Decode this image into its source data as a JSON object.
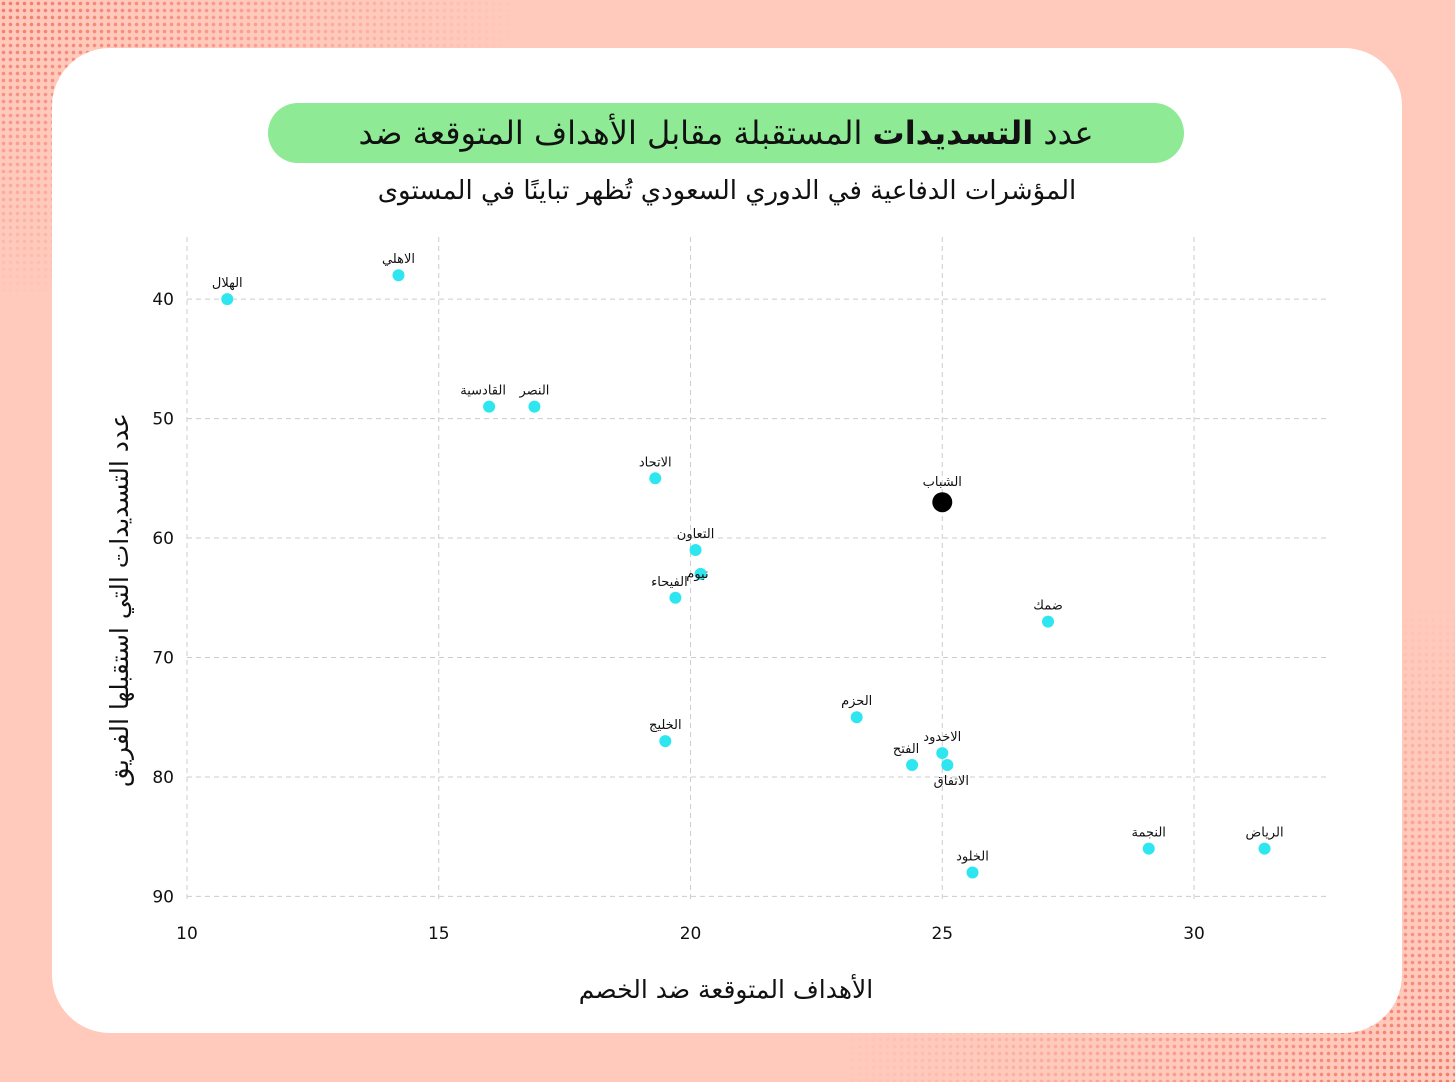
{
  "title": {
    "part1": "عدد",
    "bold": "التسديدات",
    "part2": "المستقبلة مقابل الأهداف المتوقعة ضد"
  },
  "subtitle": "المؤشرات الدفاعية في الدوري السعودي تُظهر تباينًا في المستوى",
  "colors": {
    "background": "#ffc9bb",
    "card": "#ffffff",
    "title_pill": "#8eea95",
    "point": "#2ee6f0",
    "highlight": "#000000",
    "grid": "#cccccc"
  },
  "chart_data": {
    "type": "scatter",
    "xlabel": "الأهداف المتوقعة ضد الخصم",
    "ylabel": "عدد التسديدات التي استقبلها الفريق",
    "xlim": [
      10,
      32.7
    ],
    "ylim": [
      34.8,
      90.3
    ],
    "y_inverted": true,
    "x_ticks": [
      10,
      15,
      20,
      25,
      30
    ],
    "y_ticks": [
      40,
      50,
      60,
      70,
      80,
      90
    ],
    "grid": true,
    "highlight": "الشباب",
    "points": [
      {
        "name": "الهلال",
        "x": 10.8,
        "y": 40,
        "label_pos": "above"
      },
      {
        "name": "الاهلي",
        "x": 14.2,
        "y": 38,
        "label_pos": "above"
      },
      {
        "name": "القادسية",
        "x": 16.0,
        "y": 49,
        "label_pos": "above-left"
      },
      {
        "name": "النصر",
        "x": 16.9,
        "y": 49,
        "label_pos": "above"
      },
      {
        "name": "الاتحاد",
        "x": 19.3,
        "y": 55,
        "label_pos": "above"
      },
      {
        "name": "الشباب",
        "x": 25.0,
        "y": 57,
        "label_pos": "above"
      },
      {
        "name": "التعاون",
        "x": 20.1,
        "y": 61,
        "label_pos": "above"
      },
      {
        "name": "نيوم",
        "x": 20.2,
        "y": 63,
        "label_pos": "right"
      },
      {
        "name": "الفيحاء",
        "x": 19.7,
        "y": 65,
        "label_pos": "above-left"
      },
      {
        "name": "ضمك",
        "x": 27.1,
        "y": 67,
        "label_pos": "above"
      },
      {
        "name": "الحزم",
        "x": 23.3,
        "y": 75,
        "label_pos": "above"
      },
      {
        "name": "الخليج",
        "x": 19.5,
        "y": 77,
        "label_pos": "above"
      },
      {
        "name": "الاخدود",
        "x": 25.0,
        "y": 78,
        "label_pos": "above"
      },
      {
        "name": "الفتح",
        "x": 24.4,
        "y": 79,
        "label_pos": "above-left"
      },
      {
        "name": "الاتفاق",
        "x": 25.1,
        "y": 79,
        "label_pos": "below"
      },
      {
        "name": "النجمة",
        "x": 29.1,
        "y": 86,
        "label_pos": "above"
      },
      {
        "name": "الرياض",
        "x": 31.4,
        "y": 86,
        "label_pos": "above"
      },
      {
        "name": "الخلود",
        "x": 25.6,
        "y": 88,
        "label_pos": "above"
      }
    ]
  }
}
